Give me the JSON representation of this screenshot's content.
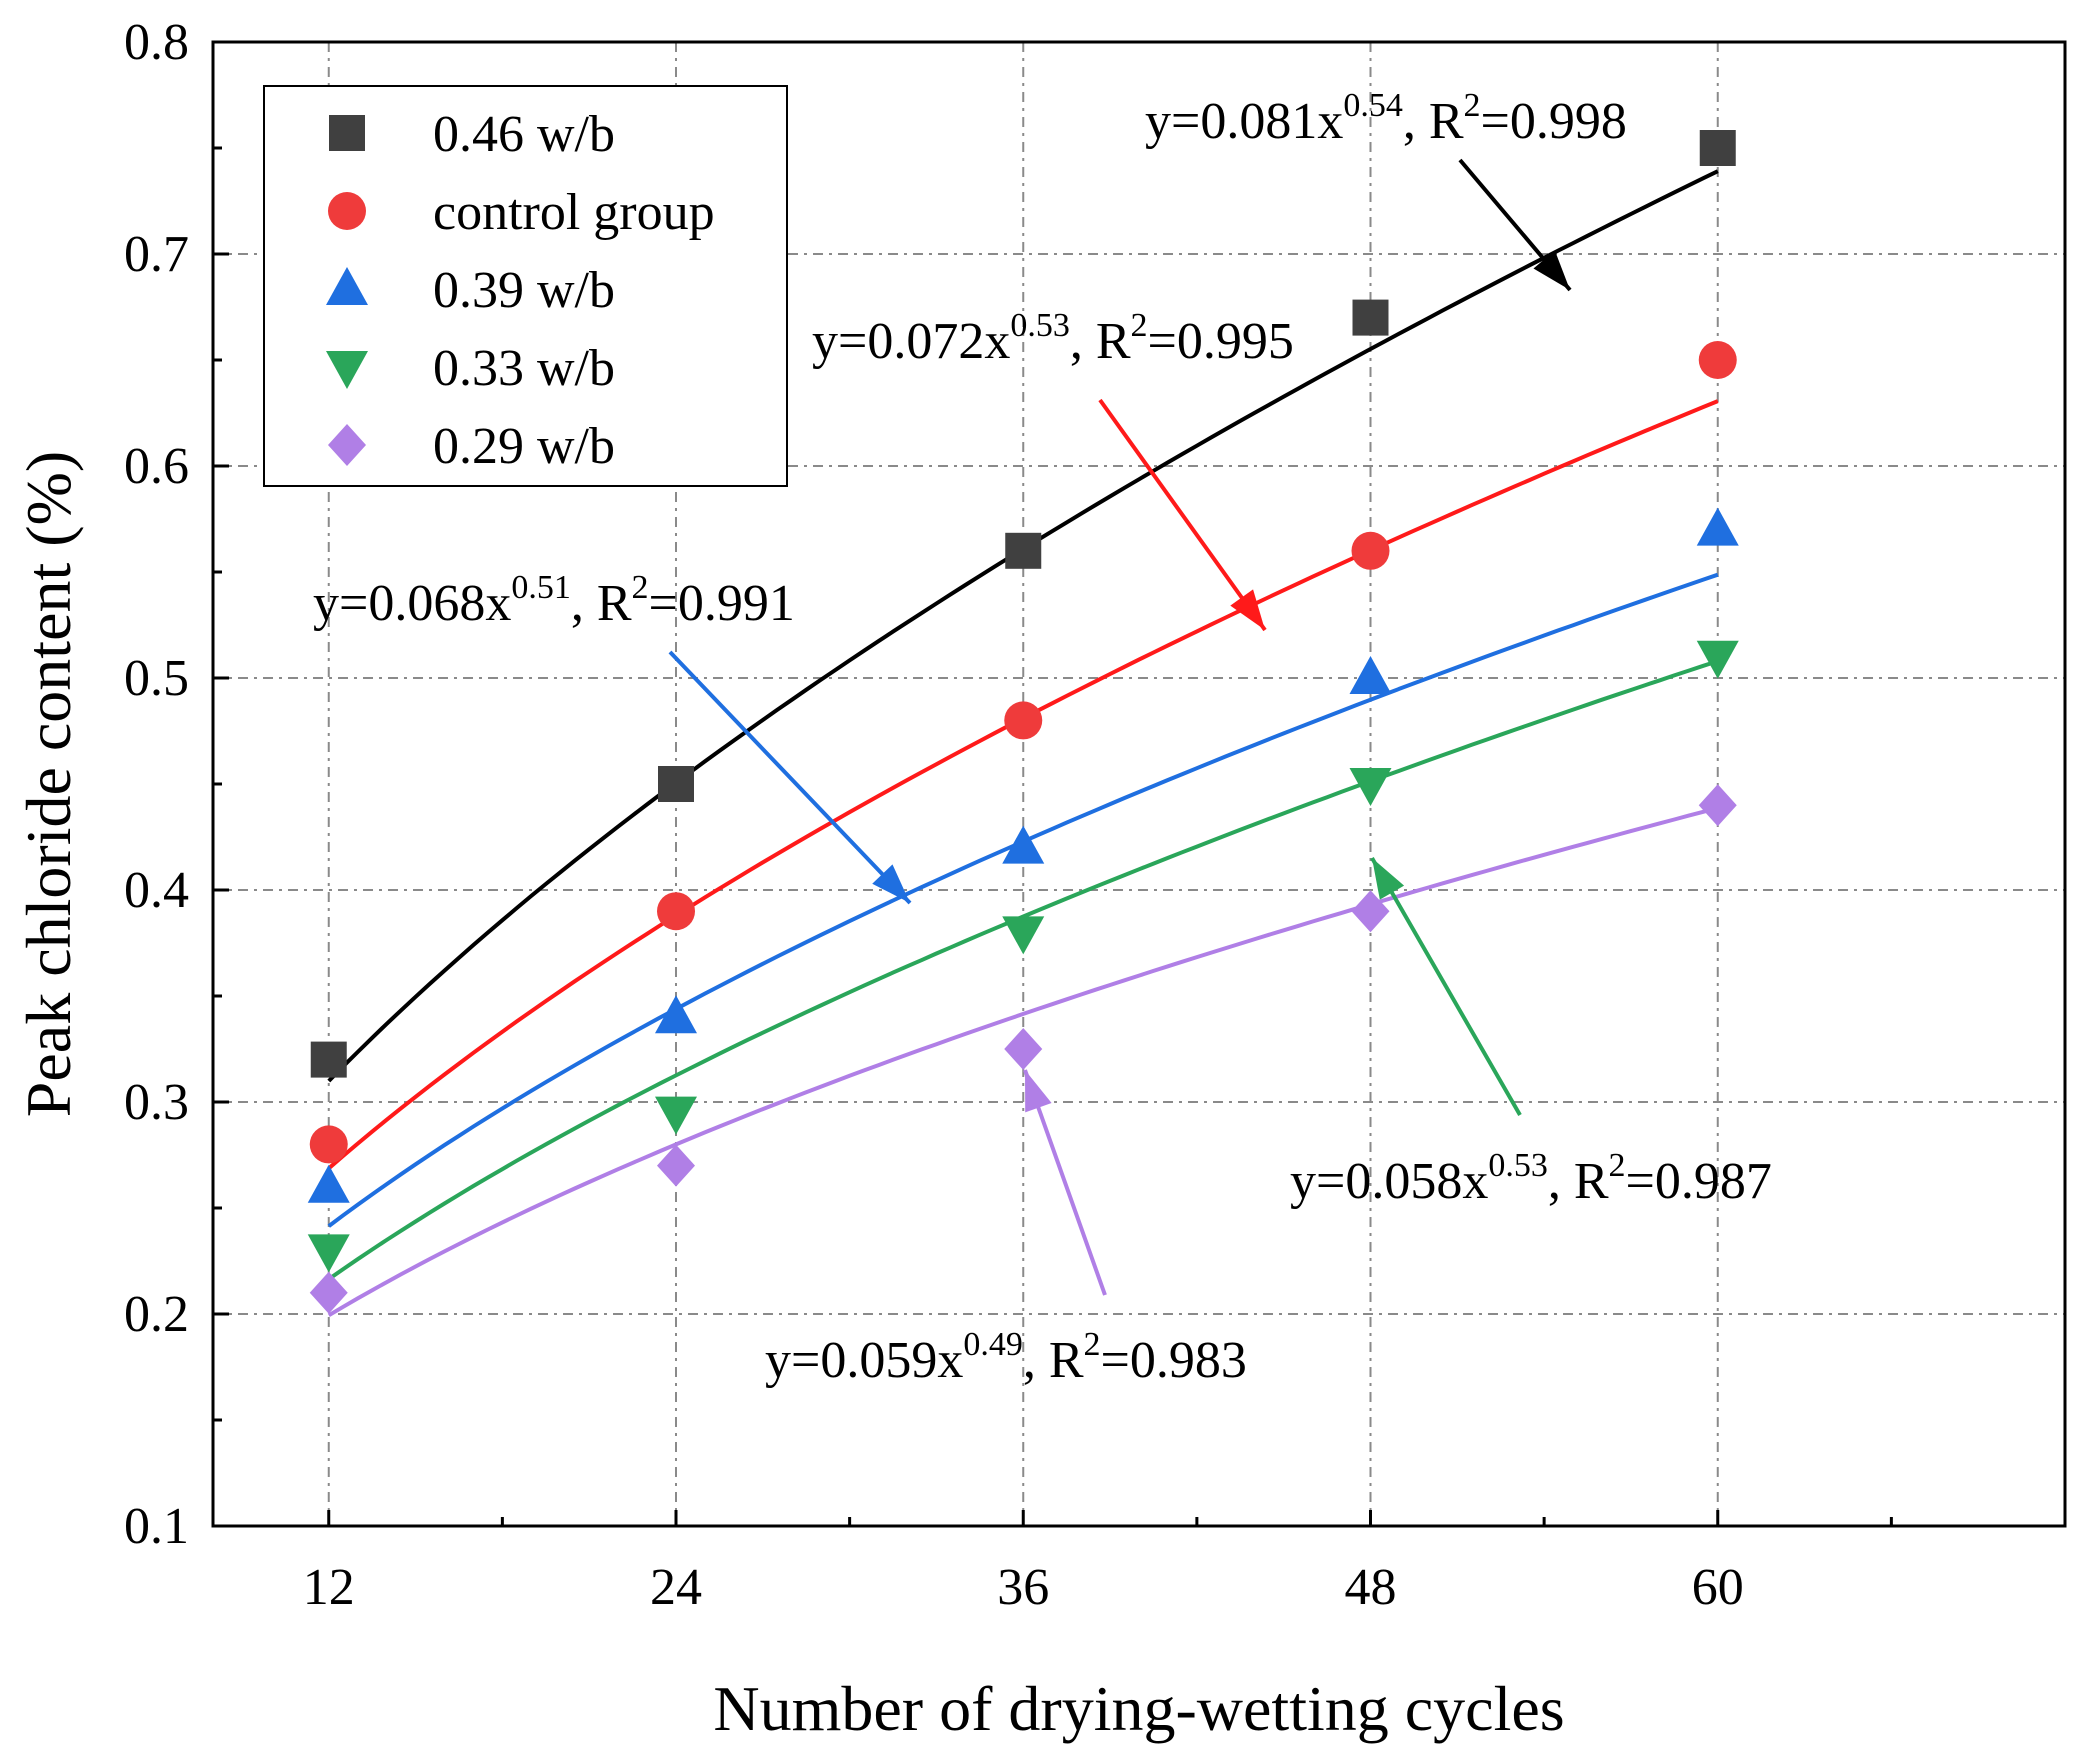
{
  "chart_data": {
    "type": "scatter",
    "xlabel": "Number of drying-wetting cycles",
    "ylabel": "Peak chloride content (%)",
    "x": [
      12,
      24,
      36,
      48,
      60
    ],
    "xlim": [
      8,
      72
    ],
    "ylim": [
      0.1,
      0.8
    ],
    "x_ticks": [
      "12",
      "24",
      "36",
      "48",
      "60"
    ],
    "y_ticks": [
      "0.1",
      "0.2",
      "0.3",
      "0.4",
      "0.5",
      "0.6",
      "0.7",
      "0.8"
    ],
    "grid": true,
    "legend_position": "top-left",
    "series": [
      {
        "name": "0.46 w/b",
        "marker": "square",
        "color": "#404040",
        "fit_color": "#000000",
        "values": [
          0.32,
          0.45,
          0.56,
          0.67,
          0.75
        ],
        "fit": {
          "a": 0.081,
          "b": 0.54
        },
        "equation": {
          "prefix": "y=0.081x",
          "exp": "0.54",
          "r_pre": ", R",
          "r_sup": "2",
          "r_post": "=0.998"
        }
      },
      {
        "name": "control group",
        "marker": "circle",
        "color": "#ef3b3b",
        "fit_color": "#ff1a1a",
        "values": [
          0.28,
          0.39,
          0.48,
          0.56,
          0.65
        ],
        "fit": {
          "a": 0.072,
          "b": 0.53
        },
        "equation": {
          "prefix": "y=0.072x",
          "exp": "0.53",
          "r_pre": ", R",
          "r_sup": "2",
          "r_post": "=0.995"
        }
      },
      {
        "name": "0.39 w/b",
        "marker": "triangle-up",
        "color": "#1f6fe0",
        "fit_color": "#1f6fe0",
        "values": [
          0.26,
          0.34,
          0.42,
          0.5,
          0.57
        ],
        "fit": {
          "a": 0.068,
          "b": 0.51
        },
        "equation": {
          "prefix": "y=0.068x",
          "exp": "0.51",
          "r_pre": ", R",
          "r_sup": "2",
          "r_post": "=0.991"
        }
      },
      {
        "name": "0.33 w/b",
        "marker": "triangle-down",
        "color": "#2aa65a",
        "fit_color": "#2aa65a",
        "values": [
          0.23,
          0.295,
          0.38,
          0.45,
          0.51
        ],
        "fit": {
          "a": 0.058,
          "b": 0.53
        },
        "equation": {
          "prefix": "y=0.058x",
          "exp": "0.53",
          "r_pre": ", R",
          "r_sup": "2",
          "r_post": "=0.987"
        }
      },
      {
        "name": "0.29 w/b",
        "marker": "diamond",
        "color": "#b07fe6",
        "fit_color": "#b07fe6",
        "values": [
          0.21,
          0.27,
          0.325,
          0.39,
          0.44
        ],
        "fit": {
          "a": 0.059,
          "b": 0.49
        },
        "equation": {
          "prefix": "y=0.059x",
          "exp": "0.49",
          "r_pre": ", R",
          "r_sup": "2",
          "r_post": "=0.983"
        }
      }
    ]
  }
}
